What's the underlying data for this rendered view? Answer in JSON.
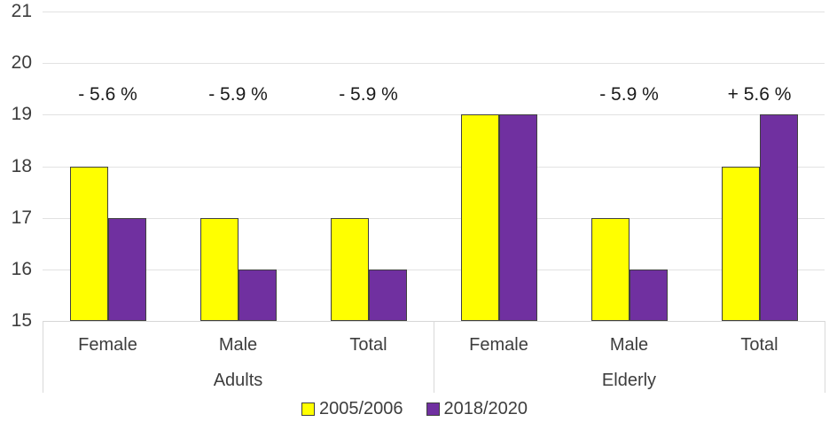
{
  "chart_data": {
    "type": "bar",
    "title": "",
    "xlabel": "",
    "ylabel": "",
    "ylim": [
      15,
      21
    ],
    "yticks": [
      15,
      16,
      17,
      18,
      19,
      20,
      21
    ],
    "grid": true,
    "legend_position": "bottom",
    "groups": [
      {
        "label": "Adults",
        "categories": [
          "Female",
          "Male",
          "Total"
        ]
      },
      {
        "label": "Elderly",
        "categories": [
          "Female",
          "Male",
          "Total"
        ]
      }
    ],
    "categories_flat": [
      "Female",
      "Male",
      "Total",
      "Female",
      "Male",
      "Total"
    ],
    "series": [
      {
        "name": "2005/2006",
        "color": "#ffff00",
        "values": [
          18,
          17,
          17,
          19,
          17,
          18
        ]
      },
      {
        "name": "2018/2020",
        "color": "#7030a0",
        "values": [
          17,
          16,
          16,
          19,
          16,
          19
        ]
      }
    ],
    "annotations": [
      "- 5.6 %",
      "- 5.9 %",
      "- 5.9 %",
      "",
      "- 5.9 %",
      "+ 5.6 %"
    ]
  },
  "colors": {
    "bar_outline": "#404040",
    "gridline": "#e2e2e2",
    "axis_line": "#d6d6d6",
    "text": "#3d3d3d",
    "annotation_text": "#1a1a1a",
    "background": "#ffffff"
  }
}
